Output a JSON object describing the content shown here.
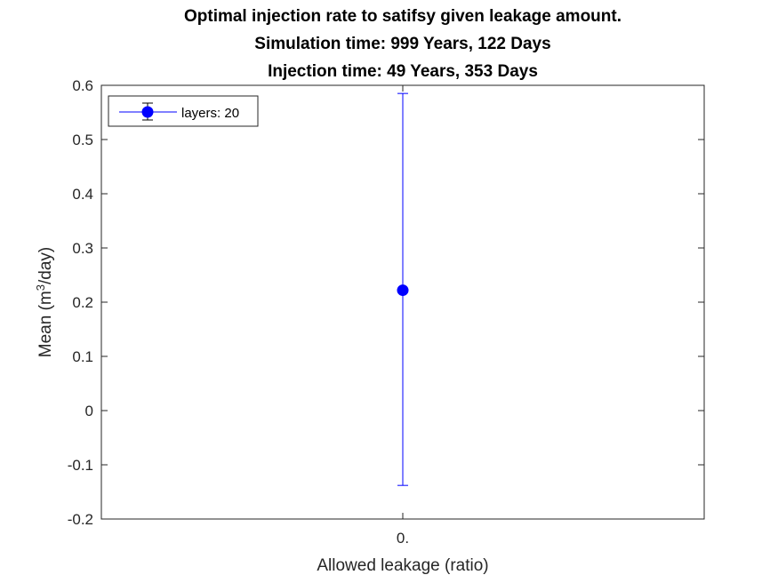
{
  "chart_data": {
    "type": "scatter",
    "title": [
      "Optimal injection rate to satifsy given leakage amount.",
      "Simulation time: 999 Years, 122 Days",
      "Injection time: 49 Years, 353 Days"
    ],
    "xlabel": "Allowed leakage (ratio)",
    "ylabel_prefix": "Mean (m",
    "ylabel_sup": "3",
    "ylabel_suffix": "/day)",
    "x_tick_labels": [
      "0."
    ],
    "ylim": [
      -0.2,
      0.6
    ],
    "y_ticks": [
      -0.2,
      -0.1,
      0,
      0.1,
      0.2,
      0.3,
      0.4,
      0.5,
      0.6
    ],
    "y_tick_labels": [
      "-0.2",
      "-0.1",
      "0",
      "0.1",
      "0.2",
      "0.3",
      "0.4",
      "0.5",
      "0.6"
    ],
    "grid": false,
    "legend_position": "top-left",
    "series": [
      {
        "name": "layers: 20",
        "color": "#0000ff",
        "marker": "circle",
        "points": [
          {
            "x": "0.",
            "y": 0.222,
            "error_lower": -0.138,
            "error_upper": 0.585
          }
        ]
      }
    ]
  }
}
